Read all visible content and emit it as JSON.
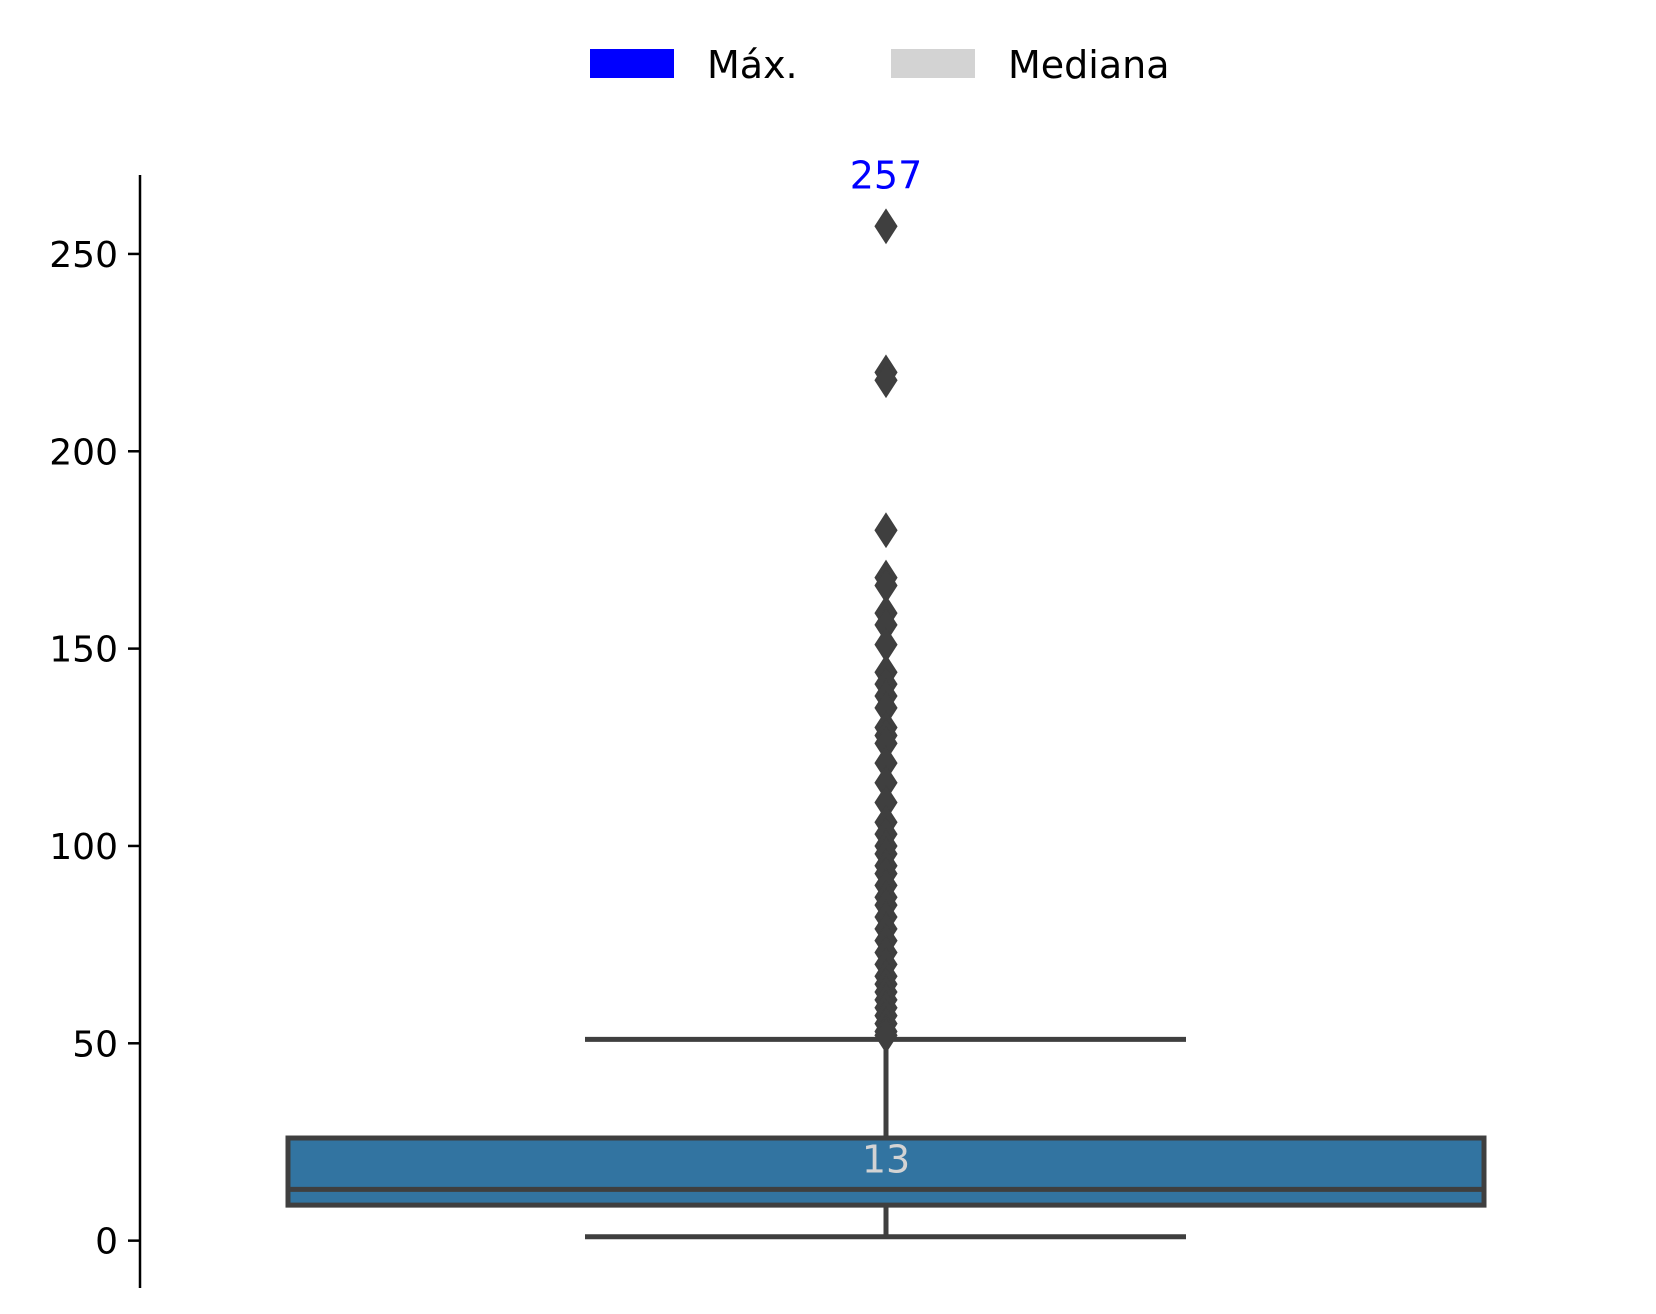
{
  "legend": {
    "items": [
      {
        "label": "Máx.",
        "color": "#0000ff"
      },
      {
        "label": "Mediana",
        "color": "#d3d3d3"
      }
    ],
    "placement": "top-center"
  },
  "colors": {
    "box_fill": "#3274a1",
    "line": "#3f3f3f",
    "axis": "#000000",
    "max_label": "#0000ff",
    "median_label": "#d3d3d3"
  },
  "chart_data": {
    "type": "box",
    "title": "",
    "xlabel": "",
    "ylabel": "",
    "ylim": [
      -12,
      270
    ],
    "yticks": [
      0,
      50,
      100,
      150,
      200,
      250
    ],
    "grid": false,
    "box": {
      "q1": 9,
      "median": 13,
      "q3": 26,
      "whisker_low": 1,
      "whisker_high": 51,
      "outliers": [
        257,
        220,
        218,
        180,
        168,
        166,
        159,
        156,
        151,
        144,
        141,
        138,
        135,
        130,
        128,
        126,
        121,
        116,
        111,
        106,
        103,
        100,
        98,
        95,
        93,
        90,
        87,
        85,
        82,
        79,
        76,
        73,
        70,
        67,
        65,
        63,
        61,
        59,
        57,
        55,
        53,
        52
      ]
    },
    "annotations": {
      "max_value": "257",
      "median_value": "13"
    }
  }
}
